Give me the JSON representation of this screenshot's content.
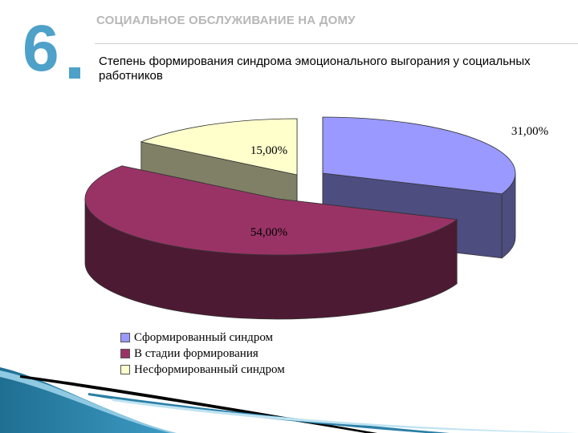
{
  "slide": {
    "number": "6",
    "header": "СОЦИАЛЬНОЕ ОБСЛУЖИВАНИЕ НА ДОМУ",
    "subtitle": "Степень формирования синдрома эмоционального выгорания у социальных работников"
  },
  "chart_data": {
    "type": "pie",
    "style": "3d-exploded",
    "categories": [
      "Сформированный синдром",
      "В стадии формирования",
      "Несформированный синдром"
    ],
    "values": [
      31,
      54,
      15
    ],
    "data_labels": [
      "31,00%",
      "54,00%",
      "15,00%"
    ],
    "colors": [
      "#9999ff",
      "#993366",
      "#ffffcc"
    ],
    "side_colors": [
      "#4d4d80",
      "#4d1a33",
      "#808066"
    ],
    "legend_position": "bottom-left"
  },
  "colors": {
    "accent": "#4ea1c8",
    "header_gray": "#b7b7b7"
  }
}
